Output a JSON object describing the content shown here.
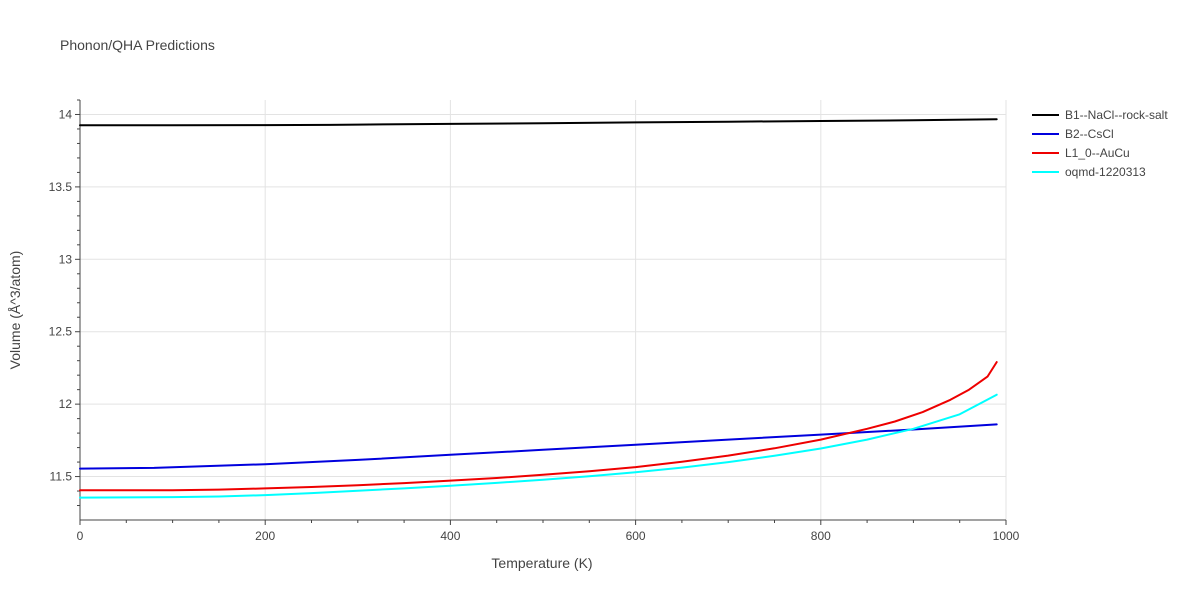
{
  "chart_data": {
    "type": "line",
    "title": "Phonon/QHA Predictions",
    "xlabel": "Temperature (K)",
    "ylabel": "Volume (Å^3/atom)",
    "xlim": [
      0,
      1000
    ],
    "ylim": [
      11.2,
      14.1
    ],
    "xticks": [
      0,
      200,
      400,
      600,
      800,
      1000
    ],
    "xtick_labels": [
      "0",
      "200",
      "400",
      "600",
      "800",
      "1000"
    ],
    "yticks": [
      11.5,
      12,
      12.5,
      13,
      13.5,
      14
    ],
    "ytick_labels": [
      "11.5",
      "12",
      "12.5",
      "13",
      "13.5",
      "14"
    ],
    "grid": true,
    "legend_position": "top-right",
    "series": [
      {
        "name": "B1--NaCl--rock-salt",
        "color": "#000000",
        "x": [
          0,
          100,
          200,
          270,
          300,
          400,
          500,
          600,
          700,
          800,
          900,
          990
        ],
        "y": [
          13.925,
          13.926,
          13.927,
          13.928,
          13.93,
          13.935,
          13.94,
          13.945,
          13.95,
          13.955,
          13.96,
          13.967
        ]
      },
      {
        "name": "B2--CsCl",
        "color": "#0000dd",
        "x": [
          0,
          80,
          200,
          300,
          400,
          500,
          600,
          700,
          800,
          900,
          990
        ],
        "y": [
          11.555,
          11.56,
          11.585,
          11.615,
          11.65,
          11.685,
          11.72,
          11.755,
          11.79,
          11.825,
          11.86
        ]
      },
      {
        "name": "L1_0--AuCu",
        "color": "#ee0000",
        "x": [
          0,
          50,
          100,
          150,
          200,
          250,
          300,
          350,
          400,
          450,
          500,
          550,
          600,
          650,
          700,
          750,
          800,
          850,
          880,
          910,
          940,
          960,
          980,
          990
        ],
        "y": [
          11.405,
          11.405,
          11.406,
          11.41,
          11.418,
          11.428,
          11.44,
          11.455,
          11.472,
          11.49,
          11.512,
          11.537,
          11.565,
          11.602,
          11.645,
          11.695,
          11.755,
          11.83,
          11.88,
          11.945,
          12.03,
          12.1,
          12.19,
          12.29
        ]
      },
      {
        "name": "oqmd-1220313",
        "color": "#00ffff",
        "x": [
          0,
          50,
          100,
          150,
          200,
          250,
          300,
          350,
          400,
          450,
          500,
          550,
          600,
          650,
          700,
          750,
          800,
          850,
          900,
          950,
          990
        ],
        "y": [
          11.355,
          11.356,
          11.358,
          11.362,
          11.372,
          11.386,
          11.402,
          11.418,
          11.436,
          11.456,
          11.478,
          11.502,
          11.53,
          11.562,
          11.6,
          11.643,
          11.694,
          11.755,
          11.83,
          11.93,
          12.065
        ]
      }
    ]
  }
}
